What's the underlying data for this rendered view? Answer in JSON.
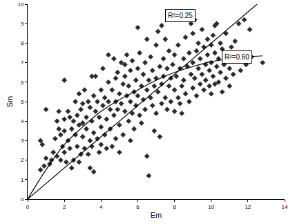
{
  "chart_data": {
    "type": "scatter",
    "x_label": "Em",
    "y_label": "Sm",
    "xlim": [
      0,
      14
    ],
    "ylim": [
      0,
      10
    ],
    "xticks": [
      0,
      2,
      4,
      6,
      8,
      10,
      12,
      14
    ],
    "yticks": [
      0,
      1,
      2,
      3,
      4,
      5,
      6,
      7,
      8,
      9,
      10
    ],
    "grid": false,
    "series": [
      {
        "type": "scatter",
        "marker": "diamond",
        "color": "#2b2b2b",
        "x": [
          0.7,
          0.7,
          0.8,
          0.9,
          1.0,
          1.0,
          1.2,
          1.3,
          1.4,
          1.5,
          1.6,
          1.7,
          1.7,
          1.8,
          1.8,
          1.9,
          2.0,
          2.0,
          2.0,
          2.0,
          1.6,
          2.1,
          2.2,
          2.2,
          2.3,
          2.3,
          2.4,
          2.5,
          2.5,
          2.6,
          2.6,
          2.7,
          2.7,
          2.8,
          2.8,
          2.9,
          2.9,
          3.0,
          3.0,
          3.0,
          2.4,
          2.8,
          3.1,
          3.1,
          3.2,
          3.2,
          3.3,
          3.3,
          3.4,
          3.4,
          3.5,
          3.5,
          3.5,
          3.6,
          3.6,
          3.7,
          3.7,
          3.8,
          3.8,
          3.9,
          3.9,
          4.0,
          4.0,
          4.0,
          3.6,
          3.4,
          4.1,
          4.1,
          4.2,
          4.2,
          4.3,
          4.3,
          4.4,
          4.4,
          4.5,
          4.5,
          4.6,
          4.6,
          4.7,
          4.7,
          4.8,
          4.8,
          4.9,
          4.9,
          5.0,
          5.0,
          5.0,
          4.4,
          4.8,
          5.1,
          5.1,
          5.2,
          5.2,
          5.3,
          5.3,
          5.4,
          5.4,
          5.5,
          5.5,
          5.6,
          5.6,
          5.7,
          5.7,
          5.8,
          5.8,
          5.9,
          5.9,
          6.0,
          6.0,
          6.0,
          5.6,
          5.3,
          6.1,
          6.1,
          6.2,
          6.2,
          6.3,
          6.3,
          6.4,
          6.4,
          6.5,
          6.5,
          6.6,
          6.6,
          6.7,
          6.7,
          6.8,
          6.8,
          6.9,
          7.0,
          7.0,
          7.0,
          6.5,
          6.9,
          7.1,
          7.1,
          7.2,
          7.2,
          7.3,
          7.3,
          7.4,
          7.4,
          7.5,
          7.5,
          7.6,
          7.6,
          7.7,
          7.7,
          7.8,
          7.8,
          7.9,
          8.0,
          8.0,
          8.0,
          7.3,
          8.1,
          8.2,
          8.2,
          8.3,
          8.3,
          8.4,
          8.5,
          8.5,
          8.6,
          8.6,
          8.7,
          8.8,
          8.8,
          8.9,
          8.9,
          9.0,
          9.0,
          9.0,
          8.4,
          9.1,
          9.1,
          9.2,
          9.2,
          9.3,
          9.3,
          9.4,
          9.4,
          9.5,
          9.5,
          9.6,
          9.6,
          9.7,
          9.7,
          9.8,
          9.8,
          9.9,
          9.9,
          10.0,
          10.0,
          10.0,
          10.1,
          10.1,
          10.2,
          10.2,
          10.3,
          10.3,
          10.4,
          10.4,
          10.5,
          10.5,
          10.6,
          10.6,
          10.7,
          10.8,
          10.8,
          10.9,
          11.0,
          11.0,
          10.2,
          11.1,
          11.2,
          11.3,
          11.4,
          11.5,
          11.6,
          11.7,
          11.8,
          11.9,
          12.1,
          12.2,
          12.8
        ],
        "values": [
          1.5,
          3.0,
          2.8,
          1.7,
          4.6,
          2.1,
          1.8,
          2.0,
          2.4,
          3.1,
          2.2,
          3.6,
          4.5,
          2.0,
          3.3,
          2.7,
          6.1,
          4.1,
          3.5,
          2.4,
          4.0,
          1.9,
          3.0,
          4.5,
          4.2,
          2.6,
          3.6,
          4.0,
          2.0,
          5.0,
          3.3,
          4.3,
          2.7,
          3.8,
          5.4,
          2.3,
          4.6,
          3.2,
          4.9,
          3.9,
          1.6,
          1.9,
          2.6,
          5.6,
          4.2,
          3.6,
          5.0,
          2.3,
          4.7,
          3.0,
          6.3,
          4.0,
          2.7,
          5.3,
          3.4,
          4.5,
          6.3,
          3.1,
          5.0,
          2.4,
          4.2,
          5.6,
          3.7,
          2.8,
          1.4,
          1.6,
          6.7,
          4.8,
          3.3,
          5.2,
          4.1,
          2.6,
          6.0,
          5.0,
          3.6,
          4.6,
          5.6,
          2.7,
          7.2,
          4.3,
          5.0,
          3.1,
          6.5,
          4.6,
          5.4,
          3.8,
          2.4,
          7.4,
          6.2,
          7.0,
          4.9,
          5.9,
          3.3,
          6.3,
          4.5,
          5.3,
          7.4,
          4.0,
          5.8,
          6.6,
          5.0,
          4.4,
          7.1,
          5.5,
          3.6,
          6.1,
          4.8,
          8.8,
          5.3,
          6.7,
          3.0,
          6.9,
          4.3,
          7.5,
          5.8,
          3.9,
          6.4,
          5.1,
          7.0,
          4.6,
          5.6,
          8.2,
          6.1,
          1.2,
          5.2,
          7.3,
          4.8,
          6.6,
          5.8,
          7.9,
          6.2,
          4.4,
          2.2,
          3.5,
          5.5,
          8.6,
          6.8,
          3.2,
          5.9,
          4.9,
          7.2,
          6.3,
          5.2,
          8.2,
          6.7,
          4.6,
          5.8,
          7.6,
          6.2,
          5.0,
          6.9,
          5.6,
          7.4,
          4.5,
          8.9,
          6.3,
          5.2,
          7.9,
          6.7,
          4.9,
          5.8,
          7.2,
          6.1,
          5.4,
          8.3,
          6.8,
          5.0,
          7.5,
          6.4,
          9.0,
          5.7,
          7.0,
          8.5,
          4.4,
          6.2,
          9.2,
          5.3,
          7.6,
          6.7,
          8.0,
          5.9,
          7.2,
          6.4,
          8.7,
          5.6,
          7.8,
          6.9,
          6.1,
          7.4,
          8.2,
          5.8,
          6.6,
          7.0,
          7.9,
          5.4,
          6.3,
          8.4,
          7.5,
          5.9,
          6.8,
          9.0,
          7.2,
          6.0,
          8.0,
          6.5,
          5.5,
          7.7,
          6.9,
          8.5,
          6.2,
          7.3,
          5.8,
          6.7,
          8.9,
          7.8,
          6.4,
          8.1,
          7.1,
          9.0,
          6.6,
          7.5,
          9.2,
          6.9,
          8.7,
          7.3,
          7.0
        ]
      },
      {
        "type": "line",
        "line_style": "solid",
        "color": "#000000",
        "x": [
          0,
          12.5
        ],
        "values": [
          0,
          10
        ]
      },
      {
        "type": "line",
        "line_style": "solid",
        "color": "#000000",
        "x": [
          0,
          1,
          2,
          3,
          4,
          5,
          6,
          7,
          8,
          9,
          10,
          11,
          12,
          12.8
        ],
        "values": [
          0,
          1.5,
          2.8,
          3.7,
          4.5,
          5.1,
          5.6,
          6.1,
          6.5,
          6.8,
          7.05,
          7.2,
          7.3,
          7.35
        ]
      }
    ],
    "annotations": [
      {
        "text": "R²=0.25",
        "x": 8.3,
        "y": 9.4
      },
      {
        "text": "R²=0.60",
        "x": 11.4,
        "y": 7.3
      }
    ]
  }
}
